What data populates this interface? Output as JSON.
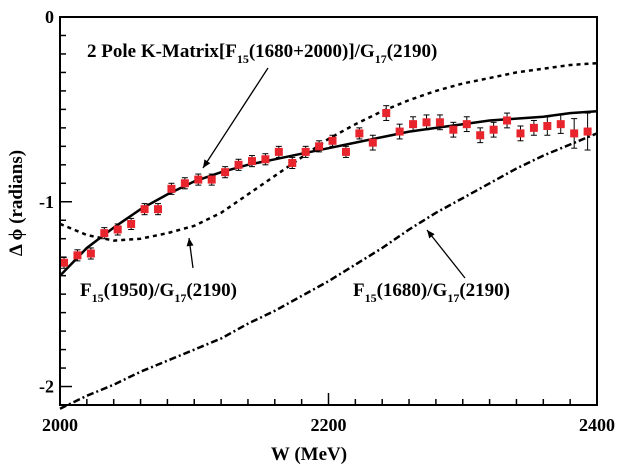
{
  "chart_data": {
    "type": "scatter",
    "xlabel": "W (MeV)",
    "ylabel": "Δ ϕ (radians)",
    "xlim": [
      2000,
      2400
    ],
    "ylim": [
      -2.1,
      0
    ],
    "x_ticks": [
      2000,
      2200,
      2400
    ],
    "x_tick_labels": [
      "2000",
      "2200",
      "2400"
    ],
    "y_ticks": [
      0,
      -1,
      -2
    ],
    "y_tick_labels": [
      "0",
      "-1",
      "-2"
    ],
    "grid": false,
    "legend": "none",
    "annotations": [
      {
        "pre": "2 Pole K-Matrix[F",
        "sub": "15",
        "post": "(1680+2000)]/G",
        "sub2": "17",
        "post2": "(2190)"
      },
      {
        "pre": "F",
        "sub": "15",
        "post": "(1950)/G",
        "sub2": "17",
        "post2": "(2190)"
      },
      {
        "pre": "F",
        "sub": "15",
        "post": "(1680)/G",
        "sub2": "17",
        "post2": "(2190)"
      }
    ],
    "series": [
      {
        "style": "points-with-errorbars",
        "color": "#e8242c",
        "x": [
          2003,
          2013,
          2023,
          2033,
          2043,
          2053,
          2063,
          2073,
          2083,
          2093,
          2103,
          2113,
          2123,
          2133,
          2143,
          2153,
          2163,
          2173,
          2183,
          2193,
          2203,
          2213,
          2223,
          2233,
          2243,
          2253,
          2263,
          2273,
          2283,
          2293,
          2303,
          2313,
          2323,
          2333,
          2343,
          2353,
          2363,
          2373,
          2383,
          2393
        ],
        "y": [
          -1.33,
          -1.29,
          -1.28,
          -1.17,
          -1.15,
          -1.12,
          -1.04,
          -1.04,
          -0.93,
          -0.9,
          -0.88,
          -0.88,
          -0.84,
          -0.8,
          -0.78,
          -0.77,
          -0.73,
          -0.79,
          -0.73,
          -0.7,
          -0.67,
          -0.73,
          -0.63,
          -0.68,
          -0.52,
          -0.62,
          -0.58,
          -0.57,
          -0.57,
          -0.61,
          -0.58,
          -0.64,
          -0.61,
          -0.56,
          -0.63,
          -0.6,
          -0.59,
          -0.58,
          -0.63,
          -0.62
        ],
        "yerr": [
          0.03,
          0.03,
          0.03,
          0.03,
          0.03,
          0.03,
          0.03,
          0.03,
          0.03,
          0.03,
          0.03,
          0.03,
          0.03,
          0.03,
          0.03,
          0.03,
          0.03,
          0.03,
          0.03,
          0.03,
          0.03,
          0.03,
          0.03,
          0.04,
          0.04,
          0.04,
          0.04,
          0.04,
          0.04,
          0.04,
          0.04,
          0.04,
          0.04,
          0.04,
          0.04,
          0.04,
          0.05,
          0.05,
          0.08,
          0.1
        ]
      },
      {
        "style": "solid",
        "x": [
          2000,
          2020,
          2040,
          2060,
          2080,
          2100,
          2120,
          2140,
          2160,
          2180,
          2200,
          2220,
          2240,
          2260,
          2280,
          2300,
          2320,
          2340,
          2360,
          2380,
          2400
        ],
        "y": [
          -1.4,
          -1.25,
          -1.14,
          -1.04,
          -0.96,
          -0.89,
          -0.84,
          -0.8,
          -0.77,
          -0.74,
          -0.71,
          -0.68,
          -0.65,
          -0.62,
          -0.6,
          -0.58,
          -0.56,
          -0.55,
          -0.54,
          -0.52,
          -0.51
        ]
      },
      {
        "style": "dashed",
        "x": [
          2000,
          2020,
          2040,
          2060,
          2080,
          2100,
          2120,
          2140,
          2160,
          2180,
          2200,
          2220,
          2240,
          2260,
          2280,
          2300,
          2320,
          2340,
          2360,
          2380,
          2400
        ],
        "y": [
          -1.12,
          -1.18,
          -1.21,
          -1.2,
          -1.17,
          -1.13,
          -1.06,
          -0.96,
          -0.86,
          -0.76,
          -0.66,
          -0.58,
          -0.51,
          -0.45,
          -0.4,
          -0.36,
          -0.33,
          -0.3,
          -0.28,
          -0.26,
          -0.25
        ]
      },
      {
        "style": "dash-dot",
        "x": [
          2000,
          2020,
          2040,
          2060,
          2080,
          2100,
          2120,
          2140,
          2160,
          2180,
          2200,
          2220,
          2240,
          2260,
          2280,
          2300,
          2320,
          2340,
          2360,
          2380,
          2400
        ],
        "y": [
          -2.12,
          -2.05,
          -1.99,
          -1.92,
          -1.86,
          -1.8,
          -1.74,
          -1.66,
          -1.59,
          -1.51,
          -1.43,
          -1.34,
          -1.25,
          -1.15,
          -1.06,
          -0.98,
          -0.9,
          -0.82,
          -0.75,
          -0.69,
          -0.63
        ]
      }
    ]
  }
}
